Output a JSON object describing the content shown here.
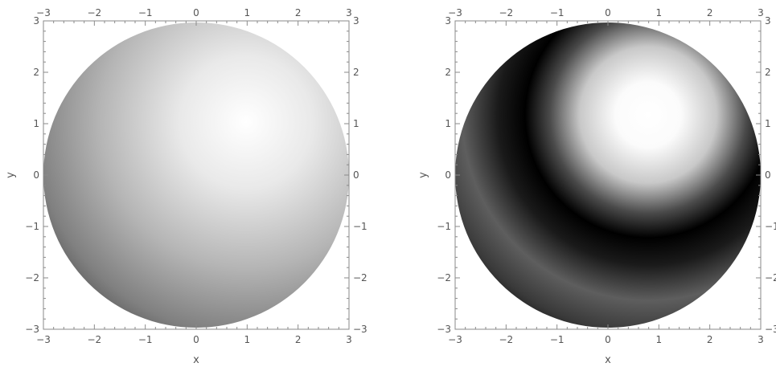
{
  "chart_data": [
    {
      "type": "heatmap",
      "description_free": true,
      "xlabel": "x",
      "ylabel": "y",
      "xlim": [
        -3,
        3
      ],
      "ylim": [
        -3,
        3
      ],
      "x_ticks": [
        -3,
        -2,
        -1,
        0,
        1,
        2,
        3
      ],
      "y_ticks": [
        -3,
        -2,
        -1,
        0,
        1,
        2,
        3
      ],
      "x_tick_labels": [
        "−3",
        "−2",
        "−1",
        "0",
        "1",
        "2",
        "3"
      ],
      "y_tick_labels": [
        "−3",
        "−2",
        "−1",
        "0",
        "1",
        "2",
        "3"
      ],
      "domain": "disk",
      "radius": 3,
      "colormap": "grayscale",
      "field": "smooth",
      "bright_center": [
        1,
        1
      ],
      "colors": {
        "dark": "#1a1a1a",
        "light": "#ffffff",
        "frame": "#8a8a8a"
      }
    },
    {
      "type": "heatmap",
      "xlabel": "x",
      "ylabel": "y",
      "xlim": [
        -3,
        3
      ],
      "ylim": [
        -3,
        3
      ],
      "x_ticks": [
        -3,
        -2,
        -1,
        0,
        1,
        2,
        3
      ],
      "y_ticks": [
        -3,
        -2,
        -1,
        0,
        1,
        2,
        3
      ],
      "x_tick_labels": [
        "−3",
        "−2",
        "−1",
        "0",
        "1",
        "2",
        "3"
      ],
      "y_tick_labels": [
        "−3",
        "−2",
        "−1",
        "0",
        "1",
        "2",
        "3"
      ],
      "domain": "disk",
      "radius": 3,
      "colormap": "grayscale",
      "field": "oscillating",
      "bright_center": [
        0.8,
        1.1
      ],
      "colors": {
        "dark": "#000000",
        "light": "#ffffff",
        "frame": "#8a8a8a"
      }
    }
  ]
}
